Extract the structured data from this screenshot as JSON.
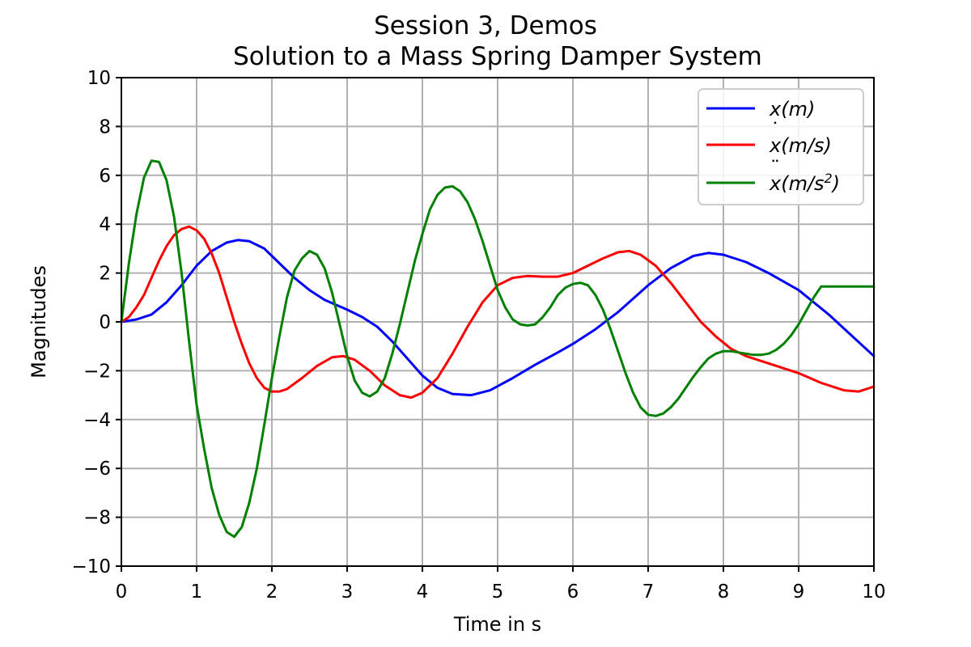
{
  "chart_data": {
    "type": "line",
    "title": "Session 3, Demos",
    "subtitle": "Solution to a Mass Spring Damper System",
    "xlabel": "Time in s",
    "ylabel": "Magnitudes",
    "xlim": [
      0,
      10
    ],
    "ylim": [
      -10,
      10
    ],
    "xticks": [
      0,
      1,
      2,
      3,
      4,
      5,
      6,
      7,
      8,
      9,
      10
    ],
    "yticks": [
      -10,
      -8,
      -6,
      -4,
      -2,
      0,
      2,
      4,
      6,
      8,
      10
    ],
    "xtick_labels": [
      "0",
      "1",
      "2",
      "3",
      "4",
      "5",
      "6",
      "7",
      "8",
      "9",
      "10"
    ],
    "ytick_labels": [
      "−10",
      "−8",
      "−6",
      "−4",
      "−2",
      "0",
      "2",
      "4",
      "6",
      "8",
      "10"
    ],
    "grid": true,
    "legend_position": "top-right",
    "series": [
      {
        "name": "x(m)",
        "legend_main": "x",
        "legend_rest": "(m)",
        "legend_dots": "",
        "legend_sup": "",
        "legend_close": "",
        "color": "#0000ff",
        "x": [
          0,
          0.2,
          0.4,
          0.6,
          0.8,
          1.0,
          1.2,
          1.4,
          1.55,
          1.7,
          1.9,
          2.1,
          2.3,
          2.5,
          2.7,
          3.0,
          3.2,
          3.4,
          3.6,
          3.8,
          4.0,
          4.2,
          4.4,
          4.65,
          4.9,
          5.2,
          5.5,
          5.8,
          6.0,
          6.3,
          6.6,
          7.0,
          7.3,
          7.6,
          7.8,
          8.0,
          8.3,
          8.6,
          9.0,
          9.4,
          9.7,
          10.0
        ],
        "y": [
          0,
          0.1,
          0.3,
          0.8,
          1.5,
          2.3,
          2.9,
          3.25,
          3.35,
          3.3,
          3.0,
          2.4,
          1.8,
          1.3,
          0.9,
          0.5,
          0.2,
          -0.2,
          -0.8,
          -1.5,
          -2.2,
          -2.7,
          -2.95,
          -3.0,
          -2.8,
          -2.3,
          -1.75,
          -1.25,
          -0.9,
          -0.3,
          0.4,
          1.5,
          2.2,
          2.7,
          2.82,
          2.75,
          2.45,
          2.0,
          1.3,
          0.3,
          -0.55,
          -1.4
        ]
      },
      {
        "name": "ẋ(m/s)",
        "legend_main": "x",
        "legend_rest": "(m/s)",
        "legend_dots": "˙",
        "legend_sup": "",
        "legend_close": "",
        "color": "#ff0000",
        "x": [
          0,
          0.1,
          0.2,
          0.3,
          0.4,
          0.5,
          0.6,
          0.7,
          0.8,
          0.9,
          1.0,
          1.1,
          1.2,
          1.3,
          1.4,
          1.5,
          1.6,
          1.7,
          1.8,
          1.9,
          2.0,
          2.1,
          2.2,
          2.4,
          2.6,
          2.8,
          2.95,
          3.1,
          3.3,
          3.5,
          3.7,
          3.85,
          4.0,
          4.2,
          4.4,
          4.6,
          4.8,
          5.0,
          5.2,
          5.4,
          5.6,
          5.8,
          6.0,
          6.2,
          6.4,
          6.6,
          6.75,
          6.9,
          7.1,
          7.3,
          7.5,
          7.7,
          7.9,
          8.1,
          8.3,
          8.6,
          9.0,
          9.3,
          9.6,
          9.8,
          10.0
        ],
        "y": [
          0,
          0.2,
          0.6,
          1.1,
          1.8,
          2.5,
          3.1,
          3.55,
          3.8,
          3.9,
          3.75,
          3.4,
          2.8,
          2.0,
          1.0,
          0.0,
          -0.9,
          -1.7,
          -2.3,
          -2.7,
          -2.85,
          -2.85,
          -2.75,
          -2.3,
          -1.8,
          -1.45,
          -1.4,
          -1.55,
          -2.0,
          -2.6,
          -3.0,
          -3.1,
          -2.9,
          -2.3,
          -1.3,
          -0.2,
          0.8,
          1.5,
          1.8,
          1.88,
          1.85,
          1.85,
          2.0,
          2.3,
          2.6,
          2.85,
          2.9,
          2.75,
          2.3,
          1.6,
          0.8,
          0.0,
          -0.6,
          -1.1,
          -1.4,
          -1.7,
          -2.1,
          -2.5,
          -2.8,
          -2.85,
          -2.65
        ]
      },
      {
        "name": "ẍ(m/s²)",
        "legend_main": "x",
        "legend_rest": "(m/s",
        "legend_dots": "¨",
        "legend_sup": "2",
        "legend_close": ")",
        "color": "#008000",
        "x": [
          0,
          0.1,
          0.2,
          0.3,
          0.4,
          0.5,
          0.6,
          0.7,
          0.8,
          0.9,
          1.0,
          1.1,
          1.2,
          1.3,
          1.4,
          1.5,
          1.6,
          1.7,
          1.8,
          1.9,
          2.0,
          2.1,
          2.2,
          2.3,
          2.4,
          2.5,
          2.6,
          2.7,
          2.8,
          2.9,
          3.0,
          3.1,
          3.2,
          3.3,
          3.4,
          3.5,
          3.6,
          3.7,
          3.8,
          3.9,
          4.0,
          4.1,
          4.2,
          4.3,
          4.4,
          4.5,
          4.6,
          4.7,
          4.8,
          4.9,
          5.0,
          5.1,
          5.2,
          5.3,
          5.4,
          5.5,
          5.6,
          5.7,
          5.8,
          5.9,
          6.0,
          6.1,
          6.2,
          6.3,
          6.4,
          6.5,
          6.6,
          6.7,
          6.8,
          6.9,
          7.0,
          7.1,
          7.2,
          7.3,
          7.4,
          7.5,
          7.6,
          7.7,
          7.8,
          7.9,
          8.0,
          8.1,
          8.2,
          8.3,
          8.4,
          8.5,
          8.6,
          8.7,
          8.8,
          8.9,
          9.0,
          9.1,
          9.2,
          9.3,
          9.4,
          9.5,
          9.6,
          9.7,
          9.8,
          9.9,
          10.0
        ],
        "y": [
          0,
          2.4,
          4.4,
          5.9,
          6.6,
          6.55,
          5.8,
          4.3,
          2.0,
          -0.8,
          -3.4,
          -5.2,
          -6.8,
          -7.9,
          -8.6,
          -8.8,
          -8.4,
          -7.4,
          -6.0,
          -4.2,
          -2.3,
          -0.6,
          1.0,
          2.1,
          2.6,
          2.9,
          2.75,
          2.2,
          1.2,
          -0.1,
          -1.4,
          -2.4,
          -2.9,
          -3.05,
          -2.85,
          -2.3,
          -1.3,
          -0.1,
          1.2,
          2.5,
          3.6,
          4.6,
          5.2,
          5.5,
          5.55,
          5.35,
          4.9,
          4.2,
          3.3,
          2.3,
          1.3,
          0.6,
          0.1,
          -0.1,
          -0.15,
          -0.1,
          0.2,
          0.6,
          1.1,
          1.4,
          1.55,
          1.6,
          1.5,
          1.1,
          0.5,
          -0.3,
          -1.2,
          -2.1,
          -2.9,
          -3.5,
          -3.8,
          -3.85,
          -3.75,
          -3.5,
          -3.15,
          -2.7,
          -2.25,
          -1.85,
          -1.5,
          -1.3,
          -1.2,
          -1.2,
          -1.25,
          -1.3,
          -1.35,
          -1.35,
          -1.3,
          -1.15,
          -0.9,
          -0.55,
          -0.1,
          0.45,
          1.0,
          1.45,
          1.45,
          1.45,
          1.45,
          1.45,
          1.45,
          1.45,
          1.45
        ]
      }
    ]
  }
}
